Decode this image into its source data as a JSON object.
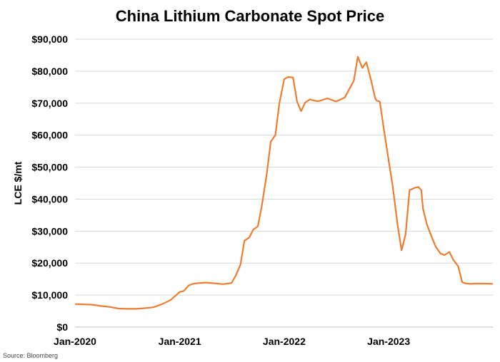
{
  "chart_data": {
    "type": "line",
    "title": "China Lithium Carbonate Spot Price",
    "xlabel": "",
    "ylabel": "LCE $/mt",
    "ylim": [
      0,
      90000
    ],
    "yticks": [
      0,
      10000,
      20000,
      30000,
      40000,
      50000,
      60000,
      70000,
      80000,
      90000
    ],
    "ytick_labels": [
      "$0",
      "$10,000",
      "$20,000",
      "$30,000",
      "$40,000",
      "$50,000",
      "$60,000",
      "$70,000",
      "$80,000",
      "$90,000"
    ],
    "xlim": [
      "2020-01-01",
      "2023-12-31"
    ],
    "xticks": [
      "2020-01-01",
      "2021-01-01",
      "2022-01-01",
      "2023-01-01"
    ],
    "xtick_labels": [
      "Jan-2020",
      "Jan-2021",
      "Jan-2022",
      "Jan-2023"
    ],
    "grid": true,
    "line_color": "#ED7D31",
    "source": "Source: Bloomberg",
    "series": [
      {
        "x": [
          "2020-01-01",
          "2020-02-01",
          "2020-03-01",
          "2020-04-01",
          "2020-05-01",
          "2020-06-01",
          "2020-07-01",
          "2020-08-01",
          "2020-09-01",
          "2020-10-01",
          "2020-11-01",
          "2020-12-01",
          "2021-01-01",
          "2021-01-15",
          "2021-02-01",
          "2021-02-15",
          "2021-03-01",
          "2021-03-15",
          "2021-04-01",
          "2021-05-01",
          "2021-06-01",
          "2021-07-01",
          "2021-07-15",
          "2021-08-01",
          "2021-08-15",
          "2021-09-01",
          "2021-09-15",
          "2021-10-01",
          "2021-10-15",
          "2021-11-01",
          "2021-11-15",
          "2021-12-01",
          "2021-12-15",
          "2022-01-01",
          "2022-01-15",
          "2022-02-01",
          "2022-02-15",
          "2022-03-01",
          "2022-03-15",
          "2022-04-01",
          "2022-04-15",
          "2022-05-01",
          "2022-06-01",
          "2022-07-01",
          "2022-08-01",
          "2022-08-20",
          "2022-09-01",
          "2022-09-15",
          "2022-10-01",
          "2022-10-15",
          "2022-11-01",
          "2022-11-10",
          "2022-11-15",
          "2022-11-20",
          "2022-12-01",
          "2022-12-15",
          "2023-01-01",
          "2023-01-15",
          "2023-02-01",
          "2023-02-15",
          "2023-03-01",
          "2023-03-15",
          "2023-04-01",
          "2023-04-15",
          "2023-04-25",
          "2023-05-01",
          "2023-05-15",
          "2023-06-01",
          "2023-06-15",
          "2023-07-01",
          "2023-07-15",
          "2023-08-01",
          "2023-08-15",
          "2023-09-01",
          "2023-09-15",
          "2023-10-01",
          "2023-10-15",
          "2023-11-01",
          "2023-11-15",
          "2023-12-01",
          "2023-12-31"
        ],
        "y": [
          7200,
          7100,
          7000,
          6600,
          6300,
          5800,
          5700,
          5700,
          5900,
          6200,
          7200,
          8500,
          11000,
          11300,
          13000,
          13500,
          13700,
          13800,
          13900,
          13700,
          13400,
          13800,
          16000,
          19500,
          27000,
          28000,
          30500,
          31500,
          38000,
          48000,
          58000,
          60000,
          70000,
          77500,
          78200,
          78000,
          70500,
          67500,
          70200,
          71200,
          70800,
          70600,
          71500,
          70500,
          71800,
          75000,
          77000,
          84500,
          81000,
          82800,
          77000,
          73500,
          71500,
          70800,
          70500,
          62000,
          52000,
          44000,
          32000,
          24000,
          29000,
          42800,
          43500,
          43800,
          42800,
          37000,
          32000,
          28000,
          25000,
          23000,
          22500,
          23500,
          21000,
          19000,
          14000,
          13600,
          13500,
          13600,
          13600,
          13600,
          13500
        ]
      }
    ]
  }
}
